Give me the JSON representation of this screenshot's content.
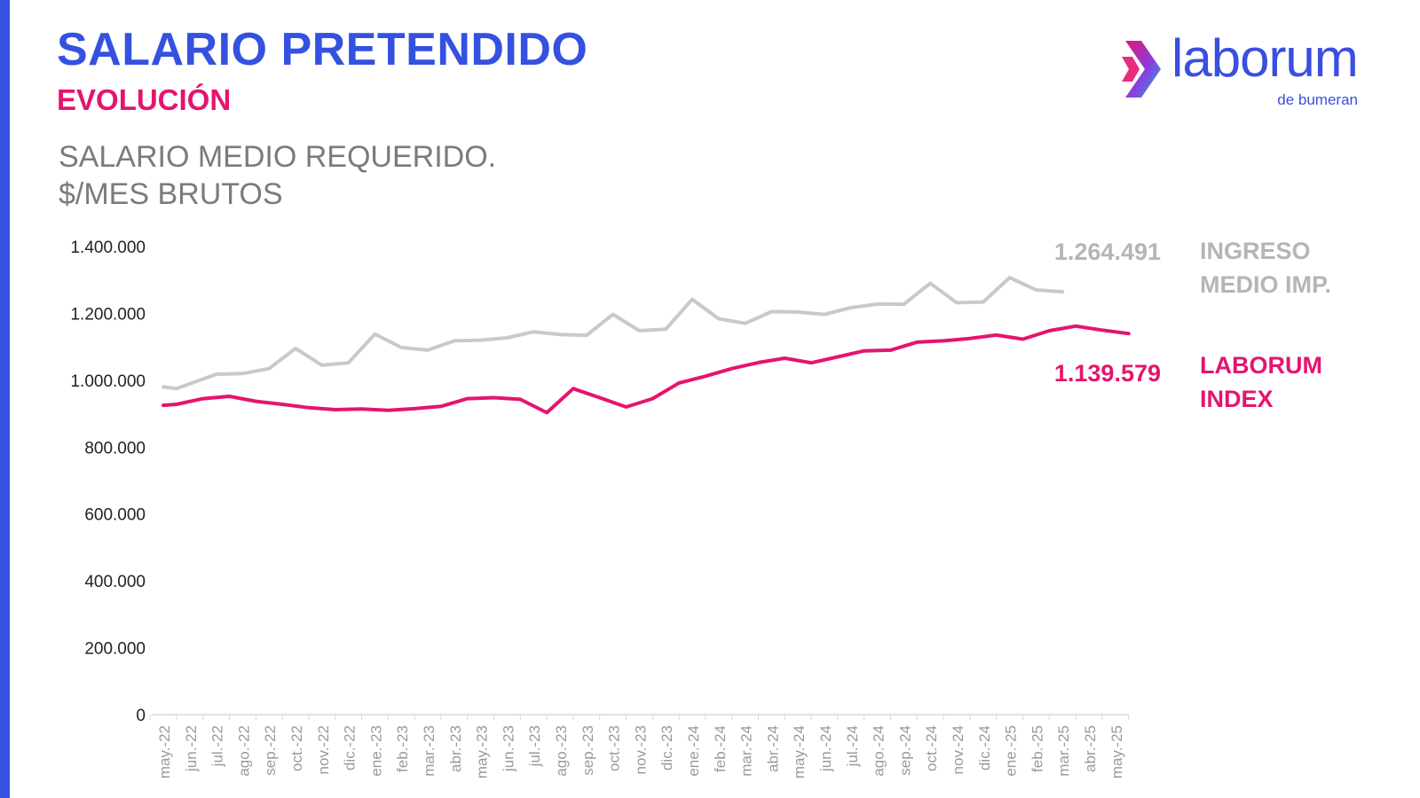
{
  "header": {
    "title": "SALARIO PRETENDIDO",
    "subtitle": "EVOLUCIÓN",
    "chart_title_line1": "SALARIO MEDIO REQUERIDO.",
    "chart_title_line2": "$/MES BRUTOS"
  },
  "logo": {
    "name": "laborum",
    "tagline": "de bumeran",
    "icon": "chevron-arrow-icon"
  },
  "colors": {
    "accent_blue": "#3451e0",
    "accent_pink": "#e5146e",
    "gray_series": "#c9c9c9",
    "gray_label": "#b5b5b5",
    "title_gray": "#7b7b7b"
  },
  "chart_data": {
    "type": "line",
    "ylim": [
      0,
      1400000
    ],
    "yticks": [
      0,
      200000,
      400000,
      600000,
      800000,
      1000000,
      1200000,
      1400000
    ],
    "ytick_labels": [
      "0",
      "200.000",
      "400.000",
      "600.000",
      "800.000",
      "1.000.000",
      "1.200.000",
      "1.400.000"
    ],
    "categories": [
      "may.-22",
      "jun.-22",
      "jul.-22",
      "ago.-22",
      "sep.-22",
      "oct.-22",
      "nov.-22",
      "dic.-22",
      "ene.-23",
      "feb.-23",
      "mar.-23",
      "abr.-23",
      "may.-23",
      "jun.-23",
      "jul.-23",
      "ago.-23",
      "sep.-23",
      "oct.-23",
      "nov.-23",
      "dic.-23",
      "ene.-24",
      "feb.-24",
      "mar.-24",
      "abr.-24",
      "may.-24",
      "jun.-24",
      "jul.-24",
      "ago.-24",
      "sep.-24",
      "oct.-24",
      "nov.-24",
      "dic.-24",
      "ene.-25",
      "feb.-25",
      "mar.-25",
      "abr.-25",
      "may.-25"
    ],
    "series": [
      {
        "name": "INGRESO MEDIO IMP.",
        "label_line1": "INGRESO",
        "label_line2": "MEDIO IMP.",
        "color": "#c9c9c9",
        "last_value_label": "1.264.491",
        "points": [
          {
            "x": 0,
            "y": 980000
          },
          {
            "x": 0.5,
            "y": 975000
          },
          {
            "x": 2,
            "y": 1018000
          },
          {
            "x": 3,
            "y": 1020000
          },
          {
            "x": 4,
            "y": 1035000
          },
          {
            "x": 5,
            "y": 1095000
          },
          {
            "x": 6,
            "y": 1045000
          },
          {
            "x": 7,
            "y": 1052000
          },
          {
            "x": 8,
            "y": 1138000
          },
          {
            "x": 9,
            "y": 1098000
          },
          {
            "x": 10,
            "y": 1090000
          },
          {
            "x": 11,
            "y": 1118000
          },
          {
            "x": 12,
            "y": 1120000
          },
          {
            "x": 13,
            "y": 1127000
          },
          {
            "x": 14,
            "y": 1145000
          },
          {
            "x": 15,
            "y": 1137000
          },
          {
            "x": 16,
            "y": 1134000
          },
          {
            "x": 17,
            "y": 1197000
          },
          {
            "x": 18,
            "y": 1148000
          },
          {
            "x": 19,
            "y": 1153000
          },
          {
            "x": 20,
            "y": 1242000
          },
          {
            "x": 21,
            "y": 1184000
          },
          {
            "x": 22,
            "y": 1170000
          },
          {
            "x": 23,
            "y": 1205000
          },
          {
            "x": 24,
            "y": 1204000
          },
          {
            "x": 25,
            "y": 1197000
          },
          {
            "x": 26,
            "y": 1217000
          },
          {
            "x": 27,
            "y": 1228000
          },
          {
            "x": 28,
            "y": 1227000
          },
          {
            "x": 29,
            "y": 1290000
          },
          {
            "x": 30,
            "y": 1232000
          },
          {
            "x": 31,
            "y": 1234000
          },
          {
            "x": 32,
            "y": 1307000
          },
          {
            "x": 33,
            "y": 1270000
          },
          {
            "x": 34,
            "y": 1264491
          }
        ]
      },
      {
        "name": "LABORUM INDEX",
        "label_line1": "LABORUM",
        "label_line2": "INDEX",
        "color": "#e5146e",
        "last_value_label": "1.139.579",
        "points": [
          {
            "x": 0,
            "y": 925000
          },
          {
            "x": 0.5,
            "y": 928000
          },
          {
            "x": 1.5,
            "y": 945000
          },
          {
            "x": 2.5,
            "y": 952000
          },
          {
            "x": 3.5,
            "y": 937000
          },
          {
            "x": 4.5,
            "y": 928000
          },
          {
            "x": 5.5,
            "y": 918000
          },
          {
            "x": 6.5,
            "y": 912000
          },
          {
            "x": 7.5,
            "y": 914000
          },
          {
            "x": 8.5,
            "y": 910000
          },
          {
            "x": 9.5,
            "y": 915000
          },
          {
            "x": 10.5,
            "y": 922000
          },
          {
            "x": 11.5,
            "y": 945000
          },
          {
            "x": 12.5,
            "y": 948000
          },
          {
            "x": 13.5,
            "y": 943000
          },
          {
            "x": 14.5,
            "y": 903000
          },
          {
            "x": 15.5,
            "y": 975000
          },
          {
            "x": 16.5,
            "y": 948000
          },
          {
            "x": 17.5,
            "y": 920000
          },
          {
            "x": 18.5,
            "y": 945000
          },
          {
            "x": 19.5,
            "y": 992000
          },
          {
            "x": 20.5,
            "y": 1012000
          },
          {
            "x": 21.5,
            "y": 1035000
          },
          {
            "x": 22.5,
            "y": 1053000
          },
          {
            "x": 23.5,
            "y": 1066000
          },
          {
            "x": 24.5,
            "y": 1052000
          },
          {
            "x": 25.5,
            "y": 1070000
          },
          {
            "x": 26.5,
            "y": 1088000
          },
          {
            "x": 27.5,
            "y": 1090000
          },
          {
            "x": 28.5,
            "y": 1114000
          },
          {
            "x": 29.5,
            "y": 1118000
          },
          {
            "x": 30.5,
            "y": 1125000
          },
          {
            "x": 31.5,
            "y": 1135000
          },
          {
            "x": 32.5,
            "y": 1123000
          },
          {
            "x": 33.5,
            "y": 1148000
          },
          {
            "x": 34.5,
            "y": 1162000
          },
          {
            "x": 35.5,
            "y": 1150000
          },
          {
            "x": 36.5,
            "y": 1139579
          }
        ]
      }
    ]
  }
}
